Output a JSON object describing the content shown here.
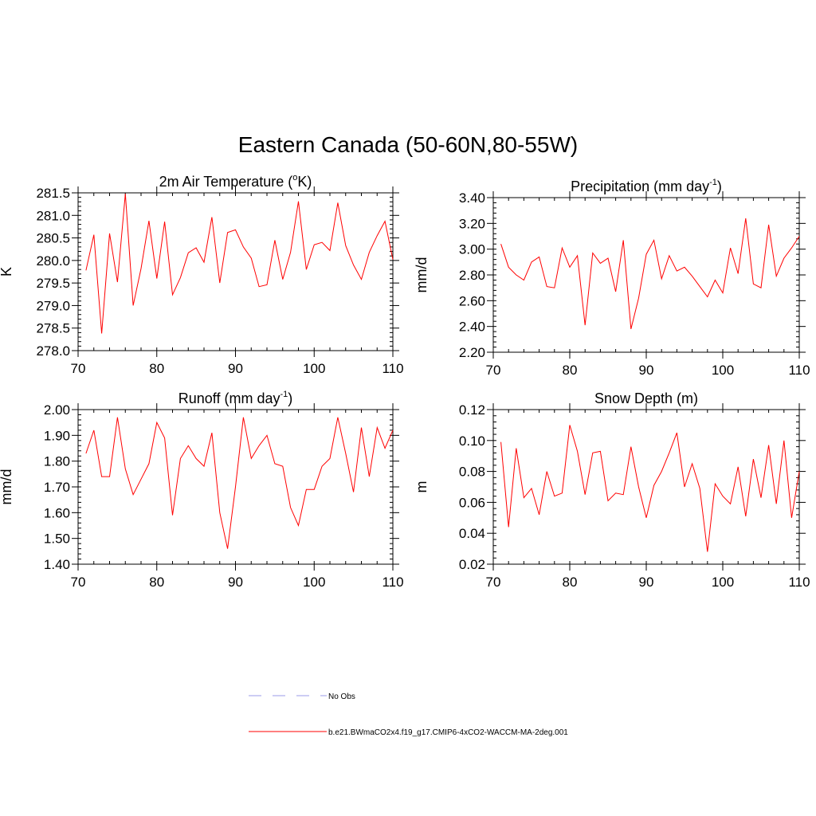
{
  "figure": {
    "title": "Eastern Canada (50-60N,80-55W)"
  },
  "legend": [
    {
      "label": "No Obs",
      "color": "#9b9be8",
      "style": "dashed"
    },
    {
      "label": "b.e21.BWmaCO2x4.f19_g17.CMIP6-4xCO2-WACCM-MA-2deg.001",
      "color": "#ff0000",
      "style": "solid"
    }
  ],
  "chart_data": [
    {
      "type": "line",
      "title": "2m Air Temperature (",
      "title_sup": "o",
      "title_suffix": "K)",
      "ylabel": "K",
      "xlim": [
        70,
        110
      ],
      "ylim": [
        278.0,
        281.5
      ],
      "xticks": [
        70,
        80,
        90,
        100,
        110
      ],
      "xtick_labels": [
        "70",
        "80",
        "90",
        "100",
        "110"
      ],
      "yticks": [
        278.0,
        278.5,
        279.0,
        279.5,
        280.0,
        280.5,
        281.0,
        281.5
      ],
      "ytick_labels": [
        "278.0",
        "278.5",
        "279.0",
        "279.5",
        "280.0",
        "280.5",
        "281.0",
        "281.5"
      ],
      "series": [
        {
          "name": "b.e21.BWmaCO2x4.f19_g17.CMIP6-4xCO2-WACCM-MA-2deg.001",
          "color": "#ff0000",
          "x": [
            71,
            72,
            73,
            74,
            75,
            76,
            77,
            78,
            79,
            80,
            81,
            82,
            83,
            84,
            85,
            86,
            87,
            88,
            89,
            90,
            91,
            92,
            93,
            94,
            95,
            96,
            97,
            98,
            99,
            100,
            101,
            102,
            103,
            104,
            105,
            106,
            107,
            108,
            109,
            110
          ],
          "values": [
            279.78,
            280.57,
            278.38,
            280.6,
            279.52,
            281.48,
            279.0,
            279.82,
            280.88,
            279.6,
            280.86,
            279.24,
            279.62,
            280.17,
            280.28,
            279.96,
            280.96,
            279.5,
            280.62,
            280.68,
            280.3,
            280.05,
            279.42,
            279.46,
            280.45,
            279.58,
            280.18,
            281.31,
            279.8,
            280.35,
            280.4,
            280.22,
            281.28,
            280.33,
            279.9,
            279.58,
            280.18,
            280.55,
            280.87,
            280.02
          ]
        }
      ]
    },
    {
      "type": "line",
      "title": "Precipitation (mm day",
      "title_sup": "-1",
      "title_suffix": ")",
      "ylabel": "mm/d",
      "xlim": [
        70,
        110
      ],
      "ylim": [
        2.2,
        3.4
      ],
      "xticks": [
        70,
        80,
        90,
        100,
        110
      ],
      "xtick_labels": [
        "70",
        "80",
        "90",
        "100",
        "110"
      ],
      "yticks": [
        2.2,
        2.4,
        2.6,
        2.8,
        3.0,
        3.2,
        3.4
      ],
      "ytick_labels": [
        "2.20",
        "2.40",
        "2.60",
        "2.80",
        "3.00",
        "3.20",
        "3.40"
      ],
      "series": [
        {
          "name": "b.e21.BWmaCO2x4.f19_g17.CMIP6-4xCO2-WACCM-MA-2deg.001",
          "color": "#ff0000",
          "x": [
            71,
            72,
            73,
            74,
            75,
            76,
            77,
            78,
            79,
            80,
            81,
            82,
            83,
            84,
            85,
            86,
            87,
            88,
            89,
            90,
            91,
            92,
            93,
            94,
            95,
            96,
            97,
            98,
            99,
            100,
            101,
            102,
            103,
            104,
            105,
            106,
            107,
            108,
            109,
            110
          ],
          "values": [
            3.04,
            2.86,
            2.8,
            2.76,
            2.9,
            2.94,
            2.71,
            2.7,
            3.01,
            2.86,
            2.95,
            2.41,
            2.97,
            2.89,
            2.93,
            2.67,
            3.07,
            2.38,
            2.62,
            2.96,
            3.07,
            2.77,
            2.95,
            2.83,
            2.86,
            2.79,
            2.71,
            2.63,
            2.76,
            2.66,
            3.01,
            2.81,
            3.24,
            2.73,
            2.7,
            3.19,
            2.79,
            2.93,
            3.01,
            3.1
          ]
        }
      ]
    },
    {
      "type": "line",
      "title": "Runoff (mm day",
      "title_sup": "-1",
      "title_suffix": ")",
      "ylabel": "mm/d",
      "xlim": [
        70,
        110
      ],
      "ylim": [
        1.4,
        2.0
      ],
      "xticks": [
        70,
        80,
        90,
        100,
        110
      ],
      "xtick_labels": [
        "70",
        "80",
        "90",
        "100",
        "110"
      ],
      "yticks": [
        1.4,
        1.5,
        1.6,
        1.7,
        1.8,
        1.9,
        2.0
      ],
      "ytick_labels": [
        "1.40",
        "1.50",
        "1.60",
        "1.70",
        "1.80",
        "1.90",
        "2.00"
      ],
      "series": [
        {
          "name": "b.e21.BWmaCO2x4.f19_g17.CMIP6-4xCO2-WACCM-MA-2deg.001",
          "color": "#ff0000",
          "x": [
            71,
            72,
            73,
            74,
            75,
            76,
            77,
            78,
            79,
            80,
            81,
            82,
            83,
            84,
            85,
            86,
            87,
            88,
            89,
            90,
            91,
            92,
            93,
            94,
            95,
            96,
            97,
            98,
            99,
            100,
            101,
            102,
            103,
            104,
            105,
            106,
            107,
            108,
            109,
            110
          ],
          "values": [
            1.83,
            1.92,
            1.74,
            1.74,
            1.97,
            1.77,
            1.67,
            1.73,
            1.79,
            1.95,
            1.89,
            1.59,
            1.81,
            1.86,
            1.81,
            1.78,
            1.91,
            1.6,
            1.46,
            1.7,
            1.97,
            1.81,
            1.86,
            1.9,
            1.79,
            1.78,
            1.62,
            1.55,
            1.69,
            1.69,
            1.78,
            1.81,
            1.97,
            1.83,
            1.68,
            1.93,
            1.74,
            1.93,
            1.85,
            1.92
          ]
        }
      ]
    },
    {
      "type": "line",
      "title": "Snow Depth (m)",
      "title_sup": "",
      "title_suffix": "",
      "ylabel": "m",
      "xlim": [
        70,
        110
      ],
      "ylim": [
        0.02,
        0.12
      ],
      "xticks": [
        70,
        80,
        90,
        100,
        110
      ],
      "xtick_labels": [
        "70",
        "80",
        "90",
        "100",
        "110"
      ],
      "yticks": [
        0.02,
        0.04,
        0.06,
        0.08,
        0.1,
        0.12
      ],
      "ytick_labels": [
        "0.02",
        "0.04",
        "0.06",
        "0.08",
        "0.10",
        "0.12"
      ],
      "series": [
        {
          "name": "b.e21.BWmaCO2x4.f19_g17.CMIP6-4xCO2-WACCM-MA-2deg.001",
          "color": "#ff0000",
          "x": [
            71,
            72,
            73,
            74,
            75,
            76,
            77,
            78,
            79,
            80,
            81,
            82,
            83,
            84,
            85,
            86,
            87,
            88,
            89,
            90,
            91,
            92,
            93,
            94,
            95,
            96,
            97,
            98,
            99,
            100,
            101,
            102,
            103,
            104,
            105,
            106,
            107,
            108,
            109,
            110
          ],
          "values": [
            0.099,
            0.044,
            0.095,
            0.063,
            0.069,
            0.052,
            0.08,
            0.064,
            0.066,
            0.11,
            0.093,
            0.065,
            0.092,
            0.093,
            0.061,
            0.066,
            0.065,
            0.096,
            0.07,
            0.05,
            0.071,
            0.08,
            0.092,
            0.105,
            0.07,
            0.085,
            0.069,
            0.028,
            0.072,
            0.064,
            0.059,
            0.083,
            0.051,
            0.088,
            0.063,
            0.097,
            0.059,
            0.1,
            0.05,
            0.08
          ]
        }
      ]
    }
  ]
}
